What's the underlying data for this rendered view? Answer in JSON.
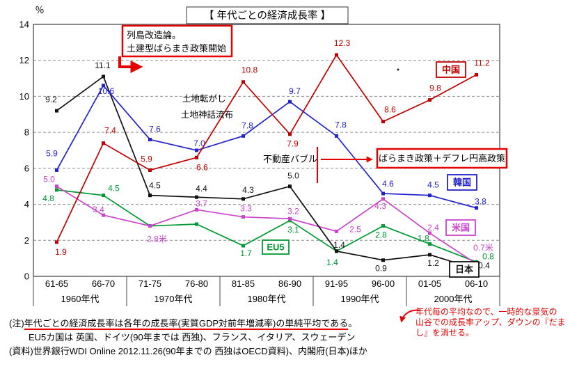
{
  "title": "【 年代ごとの経済成長率 】",
  "chart_data": {
    "type": "line",
    "title": "【 年代ごとの経済成長率 】",
    "ylabel": "％",
    "ylim": [
      0,
      14
    ],
    "y_ticks": [
      0,
      2,
      4,
      6,
      8,
      10,
      12,
      14
    ],
    "grid": "dashed-horizontal",
    "legend_position": "inline-tags",
    "categories": [
      "61-65",
      "66-70",
      "71-75",
      "76-80",
      "81-85",
      "86-90",
      "91-95",
      "96-00",
      "01-05",
      "06-10"
    ],
    "decade_labels": [
      "1960年代",
      "1970年代",
      "1980年代",
      "1990年代",
      "2000年代"
    ],
    "series": [
      {
        "key": "china",
        "name": "中国",
        "color": "#c00000",
        "values": [
          1.9,
          7.4,
          5.9,
          6.6,
          10.8,
          7.9,
          12.3,
          8.6,
          9.8,
          11.2
        ],
        "labels": [
          "1.9",
          "7.4",
          "5.9",
          "6.6",
          "10.8",
          "7.9",
          "12.3",
          "8.6",
          "9.8",
          "11.2"
        ],
        "label_offsets": [
          [
            6,
            14
          ],
          [
            10,
            -18
          ],
          [
            -5,
            -16
          ],
          [
            8,
            14
          ],
          [
            9,
            -17
          ],
          [
            4,
            14
          ],
          [
            8,
            -17
          ],
          [
            10,
            -17
          ],
          [
            8,
            -17
          ],
          [
            8,
            -17
          ]
        ]
      },
      {
        "key": "korea",
        "name": "韓国",
        "color": "#2222cc",
        "values": [
          5.9,
          10.6,
          7.6,
          7.0,
          7.8,
          9.7,
          7.8,
          4.6,
          4.5,
          3.8
        ],
        "labels": [
          "5.9",
          "10.6",
          "7.6",
          "7.0",
          "7.8",
          "9.7",
          "7.8",
          "4.6",
          "4.5",
          "3.8"
        ],
        "label_offsets": [
          [
            -7,
            -24
          ],
          [
            4,
            8
          ],
          [
            7,
            -15
          ],
          [
            4,
            -10
          ],
          [
            6,
            -15
          ],
          [
            7,
            -15
          ],
          [
            6,
            -16
          ],
          [
            7,
            -14
          ],
          [
            5,
            -15
          ],
          [
            6,
            -9
          ]
        ]
      },
      {
        "key": "japan",
        "name": "日本",
        "color": "#111111",
        "values": [
          9.2,
          11.1,
          4.5,
          4.4,
          4.3,
          5.0,
          1.4,
          0.9,
          1.2,
          0.4
        ],
        "labels": [
          "9.2",
          "11.1",
          "4.5",
          "4.4",
          "4.3",
          "5.0",
          "1.4",
          "0.9",
          "1.2",
          "0.4"
        ],
        "label_offsets": [
          [
            -8,
            -16
          ],
          [
            -1,
            -16
          ],
          [
            7,
            -14
          ],
          [
            7,
            -12
          ],
          [
            7,
            -13
          ],
          [
            5,
            -15
          ],
          [
            4,
            -9
          ],
          [
            -3,
            12
          ],
          [
            5,
            12
          ],
          [
            11,
            -5
          ]
        ]
      },
      {
        "key": "us",
        "name": "米国",
        "color": "#cc44cc",
        "values": [
          5.0,
          3.4,
          2.8,
          3.7,
          3.3,
          3.2,
          2.5,
          4.3,
          2.4,
          0.7
        ],
        "labels": [
          "5.0",
          "3.4",
          "2.8米",
          "3.7",
          "3.3",
          "3.2",
          "2.5",
          "4.3",
          "2.4",
          "0.7米"
        ],
        "label_offsets": [
          [
            -11,
            -10
          ],
          [
            -7,
            -8
          ],
          [
            10,
            19
          ],
          [
            7,
            -9
          ],
          [
            4,
            -12
          ],
          [
            5,
            -11
          ],
          [
            27,
            -3
          ],
          [
            -4,
            10
          ],
          [
            5,
            -8
          ],
          [
            10,
            -23
          ]
        ]
      },
      {
        "key": "eu5",
        "name": "EU5",
        "color": "#009933",
        "values": [
          4.8,
          4.5,
          2.8,
          2.9,
          1.7,
          3.1,
          1.4,
          2.8,
          1.8,
          0.8
        ],
        "labels": [
          "4.8",
          "4.5",
          "",
          "",
          "1.7",
          "3.1",
          "1.4",
          "2.8",
          "1.8",
          "0.8"
        ],
        "label_offsets": [
          [
            -12,
            12
          ],
          [
            15,
            -10
          ],
          [
            0,
            0
          ],
          [
            0,
            0
          ],
          [
            4,
            11
          ],
          [
            5,
            13
          ],
          [
            -6,
            16
          ],
          [
            -3,
            13
          ],
          [
            -9,
            -8
          ],
          [
            17,
            -8
          ]
        ]
      }
    ]
  },
  "series_tags": [
    {
      "key": "china",
      "label": "中国"
    },
    {
      "key": "korea",
      "label": "韓国"
    },
    {
      "key": "us",
      "label": "米国"
    },
    {
      "key": "japan",
      "label": "日本"
    },
    {
      "key": "eu5",
      "label": "EU5"
    }
  ],
  "annotations": {
    "accent_red": "#e60000",
    "reform_box_line1": "列島改造論。",
    "reform_box_line2": "土建型ばらまき政策開始",
    "land_flip": "土地転がし",
    "land_myth": "土地神話流布",
    "bubble": "不動産バブル",
    "baramaki_box": "ばらまき政策＋デフレ円高政策",
    "stray_dot": "."
  },
  "footnotes": {
    "note1_prefix": "(注)",
    "note1_underlined": "年代ごとの経済成長率は各年の成長率(実質GDP対前年増減率)の単純平均である",
    "note1_suffix": "。",
    "note2": "EU5カ国は 英国、ドイツ(90年までは 西独)、フランス、イタリア、スウェーデン",
    "note3": "(資料)世界銀行WDI Online  2012.11.26(90年までの 西独はOECD資料)、内閣府(日本)ほか"
  },
  "red_note": {
    "line1": "年代毎の平均なので、一時的な景気の",
    "line2": "山谷での成長率アップ、ダウンの『だま",
    "line3": "し』を消せる。"
  }
}
